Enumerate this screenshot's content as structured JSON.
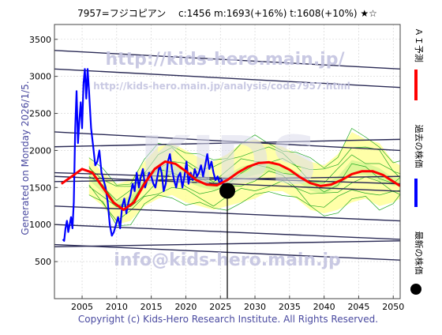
{
  "header": {
    "title": "7957=フジコピアン　 c:1456  m:1693(+16%)  t:1608(+10%)  ★☆"
  },
  "side_left": {
    "generated": "Generated on Monday 2026/1/5."
  },
  "legend": {
    "ai_label": "ＡＩ予測",
    "past_label": "過去の株価",
    "latest_label": "最新の株価"
  },
  "watermarks": {
    "url_big": "http://kids-hero.main.jp/",
    "url_small": "http://kids-hero.main.jp/analysis/code7957.html",
    "email": "info@kids-hero.main.jp",
    "brand": "KIDS"
  },
  "footer": {
    "copyright": "Copyright (c) Kids-Hero Research Institute. All Rights Reserved."
  },
  "colors": {
    "prediction": "#ff0000",
    "past": "#0000ff",
    "band_fill": "#ffff99",
    "band_fill_inner": "#c6f28a",
    "band_lines": "#22aa22",
    "trend_lines": "#2a2a55",
    "watermark": "#b8b8d8"
  },
  "chart_data": {
    "type": "line",
    "xlim": [
      2001,
      2051
    ],
    "ylim": [
      0,
      3700
    ],
    "x_ticks": [
      2005,
      2010,
      2015,
      2020,
      2025,
      2030,
      2035,
      2040,
      2045,
      2050
    ],
    "y_ticks": [
      500,
      1000,
      1500,
      2000,
      2500,
      3000,
      3500
    ],
    "grid": true,
    "series": [
      {
        "name": "過去の株価",
        "points": [
          [
            2002.2,
            800
          ],
          [
            2002.4,
            780
          ],
          [
            2002.6,
            950
          ],
          [
            2002.8,
            1050
          ],
          [
            2003.0,
            900
          ],
          [
            2003.2,
            1000
          ],
          [
            2003.4,
            1100
          ],
          [
            2003.6,
            950
          ],
          [
            2003.8,
            1300
          ],
          [
            2004.0,
            2300
          ],
          [
            2004.2,
            2800
          ],
          [
            2004.4,
            2100
          ],
          [
            2004.6,
            2400
          ],
          [
            2004.8,
            2650
          ],
          [
            2005.0,
            2300
          ],
          [
            2005.2,
            2900
          ],
          [
            2005.4,
            3100
          ],
          [
            2005.6,
            2700
          ],
          [
            2005.8,
            3100
          ],
          [
            2006.0,
            2800
          ],
          [
            2006.3,
            2300
          ],
          [
            2006.6,
            2050
          ],
          [
            2006.9,
            1800
          ],
          [
            2007.2,
            1850
          ],
          [
            2007.5,
            2000
          ],
          [
            2007.8,
            1700
          ],
          [
            2008.1,
            1600
          ],
          [
            2008.4,
            1500
          ],
          [
            2008.7,
            1300
          ],
          [
            2009.0,
            1000
          ],
          [
            2009.3,
            850
          ],
          [
            2009.6,
            900
          ],
          [
            2009.9,
            1000
          ],
          [
            2010.2,
            1100
          ],
          [
            2010.5,
            950
          ],
          [
            2010.8,
            1250
          ],
          [
            2011.1,
            1350
          ],
          [
            2011.4,
            1150
          ],
          [
            2011.7,
            1300
          ],
          [
            2012.0,
            1400
          ],
          [
            2012.3,
            1550
          ],
          [
            2012.6,
            1450
          ],
          [
            2012.9,
            1700
          ],
          [
            2013.2,
            1500
          ],
          [
            2013.5,
            1650
          ],
          [
            2013.8,
            1750
          ],
          [
            2014.1,
            1500
          ],
          [
            2014.4,
            1600
          ],
          [
            2014.7,
            1700
          ],
          [
            2015.0,
            1650
          ],
          [
            2015.3,
            1550
          ],
          [
            2015.6,
            1500
          ],
          [
            2015.9,
            1650
          ],
          [
            2016.2,
            1800
          ],
          [
            2016.5,
            1700
          ],
          [
            2016.8,
            1450
          ],
          [
            2017.1,
            1550
          ],
          [
            2017.4,
            1850
          ],
          [
            2017.7,
            1950
          ],
          [
            2018.0,
            1750
          ],
          [
            2018.3,
            1600
          ],
          [
            2018.6,
            1500
          ],
          [
            2018.9,
            1650
          ],
          [
            2019.2,
            1700
          ],
          [
            2019.5,
            1500
          ],
          [
            2019.8,
            1650
          ],
          [
            2020.1,
            1850
          ],
          [
            2020.4,
            1550
          ],
          [
            2020.7,
            1700
          ],
          [
            2021.0,
            1600
          ],
          [
            2021.3,
            1750
          ],
          [
            2021.6,
            1650
          ],
          [
            2021.9,
            1700
          ],
          [
            2022.2,
            1800
          ],
          [
            2022.5,
            1650
          ],
          [
            2022.8,
            1800
          ],
          [
            2023.1,
            1950
          ],
          [
            2023.4,
            1750
          ],
          [
            2023.7,
            1850
          ],
          [
            2024.0,
            1700
          ],
          [
            2024.3,
            1600
          ],
          [
            2024.6,
            1650
          ],
          [
            2024.9,
            1550
          ],
          [
            2025.2,
            1600
          ],
          [
            2025.5,
            1500
          ],
          [
            2025.8,
            1456
          ]
        ]
      },
      {
        "name": "ＡＩ予測",
        "points": [
          [
            2002.0,
            1550
          ],
          [
            2003.5,
            1650
          ],
          [
            2005.0,
            1750
          ],
          [
            2006.5,
            1700
          ],
          [
            2008.0,
            1500
          ],
          [
            2009.5,
            1300
          ],
          [
            2011.0,
            1200
          ],
          [
            2012.5,
            1300
          ],
          [
            2014.0,
            1550
          ],
          [
            2015.5,
            1750
          ],
          [
            2017.0,
            1850
          ],
          [
            2018.5,
            1820
          ],
          [
            2020.0,
            1720
          ],
          [
            2021.5,
            1600
          ],
          [
            2023.0,
            1540
          ],
          [
            2024.5,
            1530
          ],
          [
            2026.0,
            1600
          ],
          [
            2027.5,
            1700
          ],
          [
            2029.0,
            1780
          ],
          [
            2030.5,
            1830
          ],
          [
            2032.0,
            1840
          ],
          [
            2033.5,
            1810
          ],
          [
            2035.0,
            1740
          ],
          [
            2036.5,
            1640
          ],
          [
            2038.0,
            1560
          ],
          [
            2039.5,
            1520
          ],
          [
            2041.0,
            1540
          ],
          [
            2042.5,
            1600
          ],
          [
            2044.0,
            1680
          ],
          [
            2045.5,
            1720
          ],
          [
            2047.0,
            1720
          ],
          [
            2048.5,
            1670
          ],
          [
            2050.0,
            1580
          ],
          [
            2051.0,
            1520
          ]
        ]
      },
      {
        "name": "band_upper",
        "points": [
          [
            2006.0,
            1900
          ],
          [
            2008.0,
            1700
          ],
          [
            2010.0,
            1550
          ],
          [
            2012.0,
            1600
          ],
          [
            2014.0,
            1850
          ],
          [
            2016.0,
            2050
          ],
          [
            2018.0,
            2100
          ],
          [
            2020.0,
            2000
          ],
          [
            2022.0,
            1900
          ],
          [
            2024.0,
            1850
          ],
          [
            2026.0,
            1950
          ],
          [
            2028.0,
            2100
          ],
          [
            2030.0,
            2150
          ],
          [
            2032.0,
            2100
          ],
          [
            2034.0,
            2050
          ],
          [
            2036.0,
            1950
          ],
          [
            2038.0,
            1850
          ],
          [
            2040.0,
            1800
          ],
          [
            2042.0,
            1950
          ],
          [
            2044.0,
            2250
          ],
          [
            2046.0,
            2150
          ],
          [
            2048.0,
            2100
          ],
          [
            2050.0,
            1850
          ],
          [
            2051.0,
            1800
          ]
        ]
      },
      {
        "name": "band_lower",
        "points": [
          [
            2006.0,
            1400
          ],
          [
            2008.0,
            1250
          ],
          [
            2010.0,
            1000
          ],
          [
            2012.0,
            1050
          ],
          [
            2014.0,
            1250
          ],
          [
            2016.0,
            1350
          ],
          [
            2018.0,
            1400
          ],
          [
            2020.0,
            1300
          ],
          [
            2022.0,
            1250
          ],
          [
            2024.0,
            1200
          ],
          [
            2026.0,
            1250
          ],
          [
            2028.0,
            1300
          ],
          [
            2030.0,
            1350
          ],
          [
            2032.0,
            1450
          ],
          [
            2034.0,
            1450
          ],
          [
            2036.0,
            1350
          ],
          [
            2038.0,
            1200
          ],
          [
            2040.0,
            1150
          ],
          [
            2042.0,
            1200
          ],
          [
            2044.0,
            1300
          ],
          [
            2046.0,
            1350
          ],
          [
            2048.0,
            1250
          ],
          [
            2050.0,
            1300
          ],
          [
            2051.0,
            1350
          ]
        ]
      }
    ],
    "trend_lines": [
      [
        [
          2001,
          3350
        ],
        [
          2051,
          3100
        ]
      ],
      [
        [
          2001,
          3100
        ],
        [
          2051,
          2850
        ]
      ],
      [
        [
          2001,
          2250
        ],
        [
          2051,
          2000
        ]
      ],
      [
        [
          2001,
          2050
        ],
        [
          2051,
          2150
        ]
      ],
      [
        [
          2001,
          1700
        ],
        [
          2051,
          1550
        ]
      ],
      [
        [
          2001,
          1650
        ],
        [
          2051,
          1450
        ]
      ],
      [
        [
          2001,
          1580
        ],
        [
          2051,
          1650
        ]
      ],
      [
        [
          2001,
          1250
        ],
        [
          2051,
          1050
        ]
      ],
      [
        [
          2001,
          1000
        ],
        [
          2051,
          800
        ]
      ],
      [
        [
          2001,
          730
        ],
        [
          2051,
          520
        ]
      ],
      [
        [
          2001,
          700
        ],
        [
          2051,
          780
        ]
      ]
    ],
    "latest": {
      "x": 2026.0,
      "y": 1456
    }
  }
}
